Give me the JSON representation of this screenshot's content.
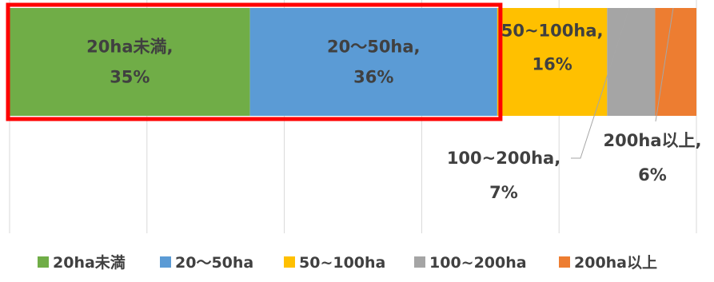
{
  "chart_data": {
    "type": "bar",
    "stacked": "100%",
    "orientation": "horizontal",
    "title": "",
    "xlabel": "",
    "ylabel": "",
    "xlim": [
      0,
      100
    ],
    "grid": true,
    "legend_position": "bottom",
    "series": [
      {
        "name": "20ha未満",
        "value": 35,
        "color": "#70ad47",
        "label_line1": "20ha未満,",
        "label_line2": "35%"
      },
      {
        "name": "20〜50ha",
        "value": 36,
        "color": "#5b9bd5",
        "label_line1": "20〜50ha,",
        "label_line2": "36%"
      },
      {
        "name": "50~100ha",
        "value": 16,
        "color": "#ffc000",
        "label_line1": "50~100ha,",
        "label_line2": "16%"
      },
      {
        "name": "100~200ha",
        "value": 7,
        "color": "#a5a5a5",
        "label_line1": "100~200ha,",
        "label_line2": "7%"
      },
      {
        "name": "200ha以上",
        "value": 6,
        "color": "#ed7d31",
        "label_line1": "200ha以上,",
        "label_line2": "6%"
      }
    ],
    "highlight_color": "#ff0000"
  }
}
